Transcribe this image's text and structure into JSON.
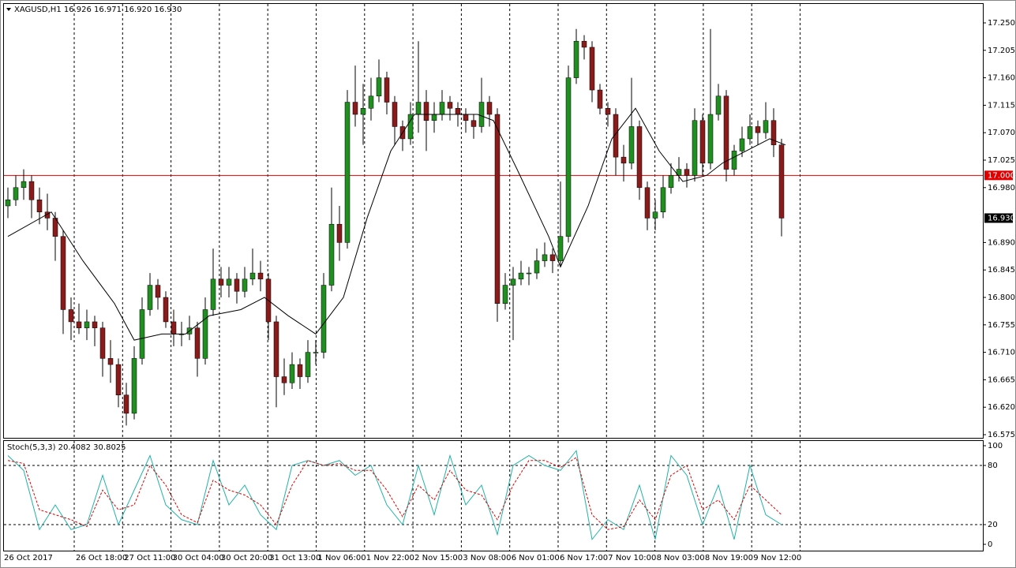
{
  "chart_data": {
    "type": "candlestick",
    "title": "XAGUSD,H1  16.926 16.971 16.920 16.930",
    "up_color": "#1f8f1f",
    "down_color": "#8b1a1a",
    "wick_color": "#000000",
    "ylim": [
      16.575,
      17.25
    ],
    "yticks": [
      {
        "value": 17.25,
        "label": "17.250"
      },
      17.205,
      {
        "value": 17.16,
        "label": "17.160"
      },
      17.115,
      {
        "value": 17.07,
        "label": "17.070"
      },
      17.025,
      {
        "value": 16.98,
        "label": "16.980"
      },
      {
        "value": 16.89,
        "label": "16.890"
      },
      16.845,
      {
        "value": 16.8,
        "label": "16.800"
      },
      16.755,
      {
        "value": 16.71,
        "label": "16.710"
      },
      16.665,
      {
        "value": 16.62,
        "label": "16.620"
      },
      16.575
    ],
    "level": {
      "value": 17,
      "label": "17.000",
      "color": "#e00000"
    },
    "last_price": {
      "value": 16.93,
      "label": "16.930"
    },
    "categories": [
      "26 Oct 2017",
      "26 Oct 18:00",
      "27 Oct 11:00",
      "30 Oct 04:00",
      "30 Oct 20:00",
      "31 Oct 13:00",
      "1 Nov 06:00",
      "1 Nov 22:00",
      "2 Nov 15:00",
      "3 Nov 08:00",
      "6 Nov 01:00",
      "6 Nov 17:00",
      "7 Nov 10:00",
      "8 Nov 03:00",
      "8 Nov 19:00",
      "9 Nov 12:00"
    ],
    "ohlc": [
      [
        16.95,
        16.98,
        16.93,
        16.96
      ],
      [
        16.96,
        17.0,
        16.95,
        16.98
      ],
      [
        16.98,
        17.01,
        16.96,
        16.99
      ],
      [
        16.99,
        17.0,
        16.93,
        16.96
      ],
      [
        16.96,
        16.98,
        16.92,
        16.94
      ],
      [
        16.94,
        16.97,
        16.91,
        16.93
      ],
      [
        16.93,
        16.94,
        16.86,
        16.9
      ],
      [
        16.9,
        16.91,
        16.74,
        16.78
      ],
      [
        16.78,
        16.8,
        16.73,
        16.76
      ],
      [
        16.76,
        16.79,
        16.74,
        16.75
      ],
      [
        16.75,
        16.78,
        16.73,
        16.76
      ],
      [
        16.76,
        16.77,
        16.72,
        16.75
      ],
      [
        16.75,
        16.76,
        16.67,
        16.7
      ],
      [
        16.7,
        16.73,
        16.66,
        16.69
      ],
      [
        16.69,
        16.7,
        16.62,
        16.64
      ],
      [
        16.64,
        16.66,
        16.59,
        16.61
      ],
      [
        16.61,
        16.72,
        16.6,
        16.7
      ],
      [
        16.7,
        16.8,
        16.69,
        16.78
      ],
      [
        16.78,
        16.84,
        16.77,
        16.82
      ],
      [
        16.82,
        16.83,
        16.78,
        16.8
      ],
      [
        16.8,
        16.81,
        16.75,
        16.76
      ],
      [
        16.76,
        16.78,
        16.72,
        16.74
      ],
      [
        16.74,
        16.76,
        16.72,
        16.74
      ],
      [
        16.74,
        16.77,
        16.73,
        16.75
      ],
      [
        16.75,
        16.76,
        16.67,
        16.7
      ],
      [
        16.7,
        16.8,
        16.69,
        16.78
      ],
      [
        16.78,
        16.88,
        16.77,
        16.83
      ],
      [
        16.83,
        16.85,
        16.8,
        16.82
      ],
      [
        16.82,
        16.85,
        16.8,
        16.83
      ],
      [
        16.83,
        16.84,
        16.79,
        16.81
      ],
      [
        16.81,
        16.85,
        16.8,
        16.83
      ],
      [
        16.83,
        16.88,
        16.82,
        16.84
      ],
      [
        16.84,
        16.86,
        16.81,
        16.83
      ],
      [
        16.83,
        16.84,
        16.73,
        16.76
      ],
      [
        16.76,
        16.77,
        16.62,
        16.67
      ],
      [
        16.67,
        16.7,
        16.64,
        16.66
      ],
      [
        16.66,
        16.71,
        16.65,
        16.69
      ],
      [
        16.69,
        16.7,
        16.65,
        16.67
      ],
      [
        16.67,
        16.73,
        16.66,
        16.71
      ],
      [
        16.71,
        16.73,
        16.69,
        16.71
      ],
      [
        16.71,
        16.84,
        16.7,
        16.82
      ],
      [
        16.82,
        16.98,
        16.81,
        16.92
      ],
      [
        16.92,
        16.95,
        16.86,
        16.89
      ],
      [
        16.89,
        17.14,
        16.88,
        17.12
      ],
      [
        17.12,
        17.18,
        17.08,
        17.1
      ],
      [
        17.1,
        17.15,
        17.05,
        17.11
      ],
      [
        17.11,
        17.16,
        17.09,
        17.13
      ],
      [
        17.13,
        17.19,
        17.12,
        17.16
      ],
      [
        17.16,
        17.17,
        17.1,
        17.12
      ],
      [
        17.12,
        17.13,
        17.05,
        17.08
      ],
      [
        17.08,
        17.09,
        17.04,
        17.06
      ],
      [
        17.06,
        17.12,
        17.05,
        17.1
      ],
      [
        17.1,
        17.22,
        17.07,
        17.12
      ],
      [
        17.12,
        17.14,
        17.04,
        17.09
      ],
      [
        17.09,
        17.12,
        17.07,
        17.1
      ],
      [
        17.1,
        17.14,
        17.09,
        17.12
      ],
      [
        17.12,
        17.13,
        17.09,
        17.11
      ],
      [
        17.11,
        17.12,
        17.08,
        17.1
      ],
      [
        17.1,
        17.11,
        17.07,
        17.09
      ],
      [
        17.09,
        17.1,
        17.06,
        17.08
      ],
      [
        17.08,
        17.16,
        17.07,
        17.12
      ],
      [
        17.12,
        17.13,
        17.08,
        17.1
      ],
      [
        17.1,
        17.11,
        16.76,
        16.79
      ],
      [
        16.79,
        16.84,
        16.78,
        16.82
      ],
      [
        16.82,
        16.85,
        16.73,
        16.83
      ],
      [
        16.83,
        16.86,
        16.82,
        16.84
      ],
      [
        16.84,
        16.85,
        16.82,
        16.84
      ],
      [
        16.84,
        16.88,
        16.83,
        16.86
      ],
      [
        16.86,
        16.89,
        16.85,
        16.87
      ],
      [
        16.87,
        16.88,
        16.84,
        16.86
      ],
      [
        16.86,
        16.99,
        16.85,
        16.9
      ],
      [
        16.9,
        17.18,
        16.89,
        17.16
      ],
      [
        17.16,
        17.24,
        17.15,
        17.22
      ],
      [
        17.22,
        17.23,
        17.19,
        17.21
      ],
      [
        17.21,
        17.22,
        17.12,
        17.14
      ],
      [
        17.14,
        17.15,
        17.1,
        17.11
      ],
      [
        17.11,
        17.12,
        17.08,
        17.1
      ],
      [
        17.1,
        17.11,
        17.0,
        17.03
      ],
      [
        17.03,
        17.05,
        16.99,
        17.02
      ],
      [
        17.02,
        17.16,
        17.01,
        17.08
      ],
      [
        17.08,
        17.09,
        16.96,
        16.98
      ],
      [
        16.98,
        16.99,
        16.91,
        16.93
      ],
      [
        16.93,
        16.96,
        16.91,
        16.94
      ],
      [
        16.94,
        17.0,
        16.93,
        16.98
      ],
      [
        16.98,
        17.02,
        16.97,
        17.0
      ],
      [
        17.0,
        17.03,
        16.99,
        17.01
      ],
      [
        17.01,
        17.02,
        16.98,
        17.0
      ],
      [
        17.0,
        17.11,
        16.99,
        17.09
      ],
      [
        17.09,
        17.1,
        17.0,
        17.02
      ],
      [
        17.02,
        17.24,
        17.01,
        17.1
      ],
      [
        17.1,
        17.15,
        17.09,
        17.13
      ],
      [
        17.13,
        17.14,
        16.99,
        17.01
      ],
      [
        17.01,
        17.05,
        17.0,
        17.04
      ],
      [
        17.04,
        17.08,
        17.03,
        17.06
      ],
      [
        17.06,
        17.1,
        17.05,
        17.08
      ],
      [
        17.08,
        17.09,
        17.05,
        17.07
      ],
      [
        17.07,
        17.12,
        17.06,
        17.09
      ],
      [
        17.09,
        17.11,
        17.03,
        17.05
      ],
      [
        17.05,
        17.06,
        16.9,
        16.93
      ]
    ],
    "moving_average": {
      "color": "#000000",
      "x": [
        0,
        5.5,
        9.5,
        13.5,
        16,
        19.5,
        22.5,
        25.5,
        29.5,
        32.5,
        35.5,
        39,
        42.5,
        45.5,
        48.5,
        51.5,
        55.5,
        59.5,
        61.5,
        64.5,
        68.5,
        70,
        73.5,
        76.5,
        79.5,
        82.5,
        85.5,
        88.5,
        90.5,
        93.5,
        96.5,
        98.5
      ],
      "values": [
        16.9,
        16.94,
        16.86,
        16.79,
        16.73,
        16.74,
        16.74,
        16.77,
        16.78,
        16.8,
        16.77,
        16.74,
        16.8,
        16.93,
        17.04,
        17.1,
        17.1,
        17.1,
        17.09,
        17.01,
        16.9,
        16.85,
        16.95,
        17.06,
        17.11,
        17.04,
        16.99,
        17.0,
        17.02,
        17.04,
        17.06,
        17.05
      ]
    },
    "stochastic": {
      "title": "Stoch(5,3,3) 20.4082 30.8025",
      "ylim": [
        0,
        100
      ],
      "yticks": [
        0,
        20,
        80,
        100
      ],
      "main_color": "#20b2aa",
      "signal_color": "#e00000",
      "x": [
        0,
        2,
        4,
        6,
        8,
        10,
        12,
        14,
        16,
        18,
        20,
        22,
        24,
        26,
        28,
        30,
        32,
        34,
        36,
        38,
        40,
        42,
        44,
        46,
        48,
        50,
        52,
        54,
        56,
        58,
        60,
        62,
        64,
        66,
        68,
        70,
        72,
        74,
        76,
        78,
        80,
        82,
        84,
        86,
        88,
        90,
        92,
        94,
        96,
        98
      ],
      "main": [
        90,
        75,
        15,
        40,
        15,
        20,
        70,
        20,
        55,
        90,
        40,
        25,
        20,
        85,
        40,
        60,
        30,
        15,
        80,
        85,
        80,
        85,
        70,
        80,
        40,
        20,
        80,
        30,
        90,
        40,
        60,
        10,
        80,
        90,
        80,
        75,
        95,
        5,
        25,
        15,
        60,
        5,
        90,
        70,
        20,
        60,
        5,
        80,
        30,
        20
      ],
      "signal": [
        85,
        82,
        35,
        30,
        25,
        18,
        55,
        35,
        40,
        80,
        60,
        30,
        22,
        65,
        55,
        50,
        40,
        20,
        60,
        85,
        80,
        82,
        75,
        75,
        55,
        28,
        60,
        45,
        75,
        55,
        50,
        25,
        60,
        85,
        85,
        78,
        88,
        30,
        15,
        18,
        45,
        25,
        70,
        80,
        35,
        45,
        25,
        60,
        45,
        30
      ]
    }
  }
}
